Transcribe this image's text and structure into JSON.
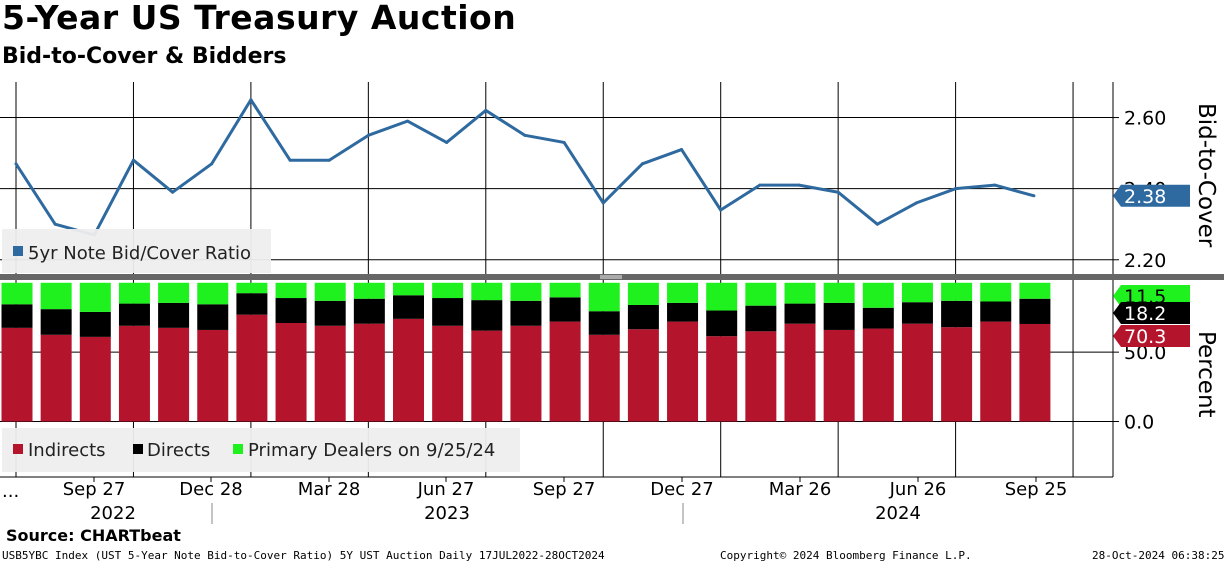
{
  "header": {
    "title": "5-Year US Treasury Auction",
    "subtitle": "Bid-to-Cover & Bidders"
  },
  "footer": {
    "source": "Source: CHARTbeat",
    "index_info": "USB5YBC Index (UST 5-Year Note Bid-to-Cover Ratio) 5Y UST Auction  Daily 17JUL2022-28OCT2024",
    "copyright": "Copyright© 2024 Bloomberg Finance L.P.",
    "timestamp": "28-Oct-2024 06:38:25"
  },
  "colors": {
    "line": "#2e6a9f",
    "indirects": "#b5152c",
    "directs": "#000000",
    "primary_dealers": "#1ef11e"
  },
  "chart_data": [
    {
      "type": "line",
      "name": "bid-to-cover",
      "axis_label": "Bid-to-Cover",
      "ylim": [
        2.16,
        2.7
      ],
      "ticks": [
        "2.60",
        "2.40",
        "2.20"
      ],
      "tick_values": [
        2.6,
        2.4,
        2.2
      ],
      "last_value_label": "2.38",
      "legend": "5yr Note Bid/Cover Ratio",
      "grid": true,
      "series": [
        {
          "name": "5yr Note Bid/Cover Ratio",
          "values": [
            2.47,
            2.3,
            2.27,
            2.48,
            2.39,
            2.47,
            2.65,
            2.48,
            2.48,
            2.55,
            2.59,
            2.53,
            2.62,
            2.55,
            2.53,
            2.36,
            2.47,
            2.51,
            2.34,
            2.41,
            2.41,
            2.39,
            2.3,
            2.36,
            2.4,
            2.41,
            2.38
          ]
        }
      ]
    },
    {
      "type": "bar",
      "stacked": true,
      "name": "bidders",
      "axis_label": "Percent",
      "ylim": [
        -40,
        102
      ],
      "ticks": [
        "50.0",
        "0.0"
      ],
      "tick_values": [
        50,
        0
      ],
      "legend_suffix": "on 9/25/24",
      "grid": true,
      "last_value_labels": {
        "primary_dealers": "11.5",
        "directs": "18.2",
        "indirects": "70.3"
      },
      "series": [
        {
          "name": "Indirects",
          "values": [
            67.5,
            62.5,
            61,
            69,
            67.5,
            66,
            77,
            71,
            69,
            70.5,
            74,
            69,
            65.5,
            69,
            72,
            62.5,
            66.5,
            72,
            61.5,
            65,
            70.5,
            66,
            67,
            70.5,
            68,
            72,
            70.3
          ]
        },
        {
          "name": "Directs",
          "values": [
            17,
            18.5,
            18,
            16,
            18,
            18.5,
            15.5,
            18,
            18,
            18,
            17,
            20,
            22,
            18,
            17.5,
            17,
            17.5,
            13.5,
            18.5,
            18.5,
            14.5,
            19.5,
            15,
            15.5,
            19,
            14.5,
            18.2
          ]
        },
        {
          "name": "Primary Dealers",
          "values": [
            15.5,
            19,
            21,
            15,
            14.5,
            15.5,
            7.5,
            11,
            13,
            11.5,
            9,
            11,
            12.5,
            13,
            10.5,
            20.5,
            16,
            14.5,
            20,
            16.5,
            15,
            14.5,
            18,
            14,
            13,
            13.5,
            11.5
          ]
        }
      ]
    }
  ],
  "x_axis": {
    "start_label": "...",
    "month_labels": [
      "Sep 27",
      "Dec 28",
      "Mar 28",
      "Jun 27",
      "Sep 27",
      "Dec 27",
      "Mar 26",
      "Jun 26",
      "Sep 25"
    ],
    "year_labels": [
      "2022",
      "2023",
      "2024"
    ]
  }
}
